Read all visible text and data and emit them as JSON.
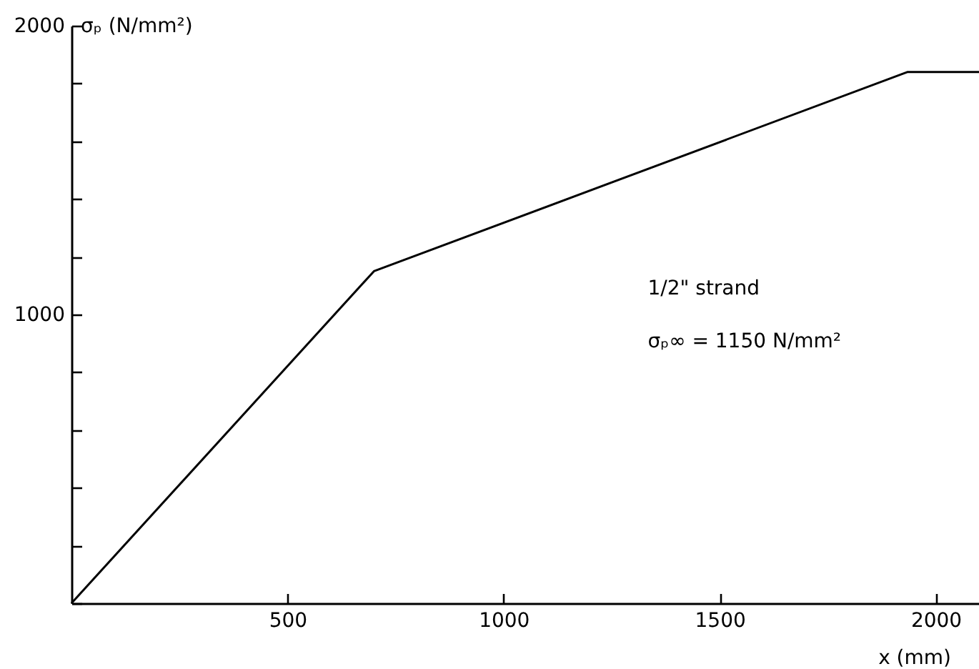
{
  "chart_data": {
    "type": "line",
    "xlabel": "x (mm)",
    "ylabel": "σₚ (N/mm²)",
    "x": [
      0,
      700,
      1935,
      2100
    ],
    "series": [
      {
        "color": "#000000",
        "values": [
          0,
          1150,
          1840,
          1840
        ]
      }
    ],
    "xlim": [
      0,
      2100
    ],
    "xticks": [
      500,
      1000,
      1500,
      2000
    ],
    "ylim": [
      0,
      2000
    ],
    "yticks": [
      {
        "value": 0,
        "label": null
      },
      {
        "value": 200,
        "label": null
      },
      {
        "value": 400,
        "label": null
      },
      {
        "value": 600,
        "label": null
      },
      {
        "value": 800,
        "label": null
      },
      1000,
      {
        "value": 1200,
        "label": null
      },
      {
        "value": 1400,
        "label": null
      },
      {
        "value": 1600,
        "label": null
      },
      {
        "value": 1800,
        "label": null
      },
      2000
    ],
    "annotations": [
      "1/2\" strand",
      "σₚ∞ = 1150 N/mm²"
    ],
    "grid": false,
    "marker": "none",
    "line_style": "solid"
  }
}
